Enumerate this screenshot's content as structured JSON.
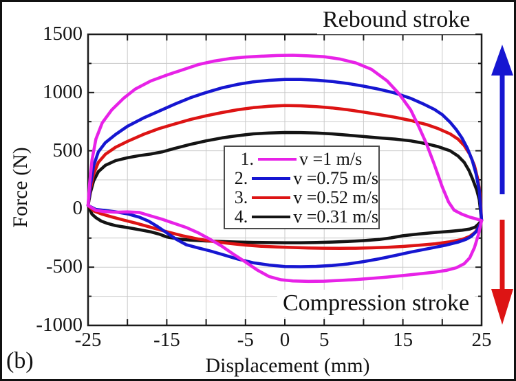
{
  "figure_label": "(b)",
  "annotations": {
    "rebound": "Rebound stroke",
    "compression": "Compression stroke"
  },
  "axis_titles": {
    "x": "Displacement (mm)",
    "y": "Force (N)"
  },
  "legend": {
    "items": [
      {
        "num": "1.",
        "label": "v =1 m/s",
        "color": "#e722e7"
      },
      {
        "num": "2.",
        "label": "v =0.75 m/s",
        "color": "#1616d1"
      },
      {
        "num": "3.",
        "label": "v =0.52 m/s",
        "color": "#dd1414"
      },
      {
        "num": "4.",
        "label": "v =0.31 m/s",
        "color": "#141414"
      }
    ]
  },
  "arrows": {
    "up_color": "#1616d1",
    "down_color": "#dd1414"
  },
  "colors": {
    "frame": "#1a1a1a",
    "grid": "#cacaca",
    "tick": "#1a1a1a"
  },
  "chart_data": {
    "type": "line",
    "title": "",
    "xlabel": "Displacement (mm)",
    "ylabel": "Force (N)",
    "xlim": [
      -25,
      25
    ],
    "ylim": [
      -1000,
      1500
    ],
    "grid": {
      "on": true,
      "x_step_mm": 5,
      "y_step_N": 250
    },
    "legend_position": "center",
    "x_tick_labels": [
      {
        "value": -25,
        "label": "-25"
      },
      {
        "value": -15,
        "label": "-15"
      },
      {
        "value": -5,
        "label": "-5"
      },
      {
        "value": 0,
        "label": "0"
      },
      {
        "value": 5,
        "label": "5"
      },
      {
        "value": 15,
        "label": "15"
      },
      {
        "value": 25,
        "label": "25"
      }
    ],
    "y_tick_labels": [
      {
        "value": 1500,
        "label": "1500"
      },
      {
        "value": 1000,
        "label": "1000"
      },
      {
        "value": 500,
        "label": "500"
      },
      {
        "value": 0,
        "label": "0"
      },
      {
        "value": -500,
        "label": "-500"
      },
      {
        "value": -1000,
        "label": "-1000"
      }
    ],
    "series": [
      {
        "name": "v =0.31 m/s",
        "color": "#141414",
        "loop": [
          [
            -25,
            30
          ],
          [
            -24.7,
            140
          ],
          [
            -24.3,
            240
          ],
          [
            -23.7,
            320
          ],
          [
            -22.8,
            375
          ],
          [
            -21.5,
            415
          ],
          [
            -20,
            440
          ],
          [
            -18.5,
            458
          ],
          [
            -17,
            472
          ],
          [
            -15.5,
            492
          ],
          [
            -14,
            520
          ],
          [
            -12,
            555
          ],
          [
            -10,
            585
          ],
          [
            -8,
            610
          ],
          [
            -6,
            630
          ],
          [
            -4,
            645
          ],
          [
            -2,
            653
          ],
          [
            0,
            657
          ],
          [
            2,
            656
          ],
          [
            4,
            652
          ],
          [
            6,
            645
          ],
          [
            8,
            634
          ],
          [
            10,
            622
          ],
          [
            12,
            610
          ],
          [
            14,
            600
          ],
          [
            16,
            585
          ],
          [
            18,
            560
          ],
          [
            19.5,
            535
          ],
          [
            21,
            500
          ],
          [
            22,
            455
          ],
          [
            22.8,
            400
          ],
          [
            23.4,
            330
          ],
          [
            23.9,
            250
          ],
          [
            24.4,
            160
          ],
          [
            24.7,
            80
          ],
          [
            25,
            -100
          ],
          [
            24.6,
            -130
          ],
          [
            24.2,
            -155
          ],
          [
            23.5,
            -172
          ],
          [
            22.5,
            -183
          ],
          [
            21,
            -192
          ],
          [
            19,
            -203
          ],
          [
            17,
            -215
          ],
          [
            15,
            -230
          ],
          [
            13.5,
            -248
          ],
          [
            12,
            -262
          ],
          [
            10,
            -272
          ],
          [
            8,
            -279
          ],
          [
            6,
            -284
          ],
          [
            4,
            -288
          ],
          [
            2,
            -290
          ],
          [
            0,
            -290
          ],
          [
            -2,
            -289
          ],
          [
            -4,
            -287
          ],
          [
            -6,
            -284
          ],
          [
            -8,
            -280
          ],
          [
            -10,
            -275
          ],
          [
            -12,
            -267
          ],
          [
            -13.5,
            -258
          ],
          [
            -15,
            -240
          ],
          [
            -16,
            -215
          ],
          [
            -17,
            -197
          ],
          [
            -18.5,
            -178
          ],
          [
            -20,
            -160
          ],
          [
            -21.5,
            -143
          ],
          [
            -22.5,
            -125
          ],
          [
            -23.3,
            -105
          ],
          [
            -24,
            -75
          ],
          [
            -24.5,
            -45
          ]
        ]
      },
      {
        "name": "v =0.52 m/s",
        "color": "#dd1414",
        "loop": [
          [
            -25,
            30
          ],
          [
            -24.7,
            170
          ],
          [
            -24.3,
            300
          ],
          [
            -23.7,
            400
          ],
          [
            -22.8,
            470
          ],
          [
            -21.5,
            530
          ],
          [
            -20,
            580
          ],
          [
            -18,
            640
          ],
          [
            -16,
            690
          ],
          [
            -14,
            730
          ],
          [
            -12,
            768
          ],
          [
            -10,
            800
          ],
          [
            -8,
            828
          ],
          [
            -6,
            852
          ],
          [
            -4,
            870
          ],
          [
            -2,
            882
          ],
          [
            0,
            888
          ],
          [
            2,
            886
          ],
          [
            4,
            880
          ],
          [
            6,
            868
          ],
          [
            8,
            852
          ],
          [
            10,
            832
          ],
          [
            12,
            810
          ],
          [
            14,
            788
          ],
          [
            16,
            760
          ],
          [
            18,
            725
          ],
          [
            19.5,
            690
          ],
          [
            21,
            645
          ],
          [
            22,
            600
          ],
          [
            22.8,
            545
          ],
          [
            23.5,
            470
          ],
          [
            24.1,
            370
          ],
          [
            24.5,
            260
          ],
          [
            24.8,
            130
          ],
          [
            25,
            -100
          ],
          [
            24.6,
            -160
          ],
          [
            24.2,
            -200
          ],
          [
            23.5,
            -235
          ],
          [
            22.5,
            -262
          ],
          [
            21,
            -282
          ],
          [
            19,
            -300
          ],
          [
            17,
            -312
          ],
          [
            15,
            -322
          ],
          [
            13,
            -329
          ],
          [
            11,
            -334
          ],
          [
            9,
            -337
          ],
          [
            7,
            -338
          ],
          [
            5,
            -337
          ],
          [
            3,
            -335
          ],
          [
            1,
            -331
          ],
          [
            -1,
            -326
          ],
          [
            -3,
            -320
          ],
          [
            -5,
            -310
          ],
          [
            -7,
            -296
          ],
          [
            -9,
            -280
          ],
          [
            -11,
            -258
          ],
          [
            -13,
            -230
          ],
          [
            -15,
            -196
          ],
          [
            -17,
            -158
          ],
          [
            -19,
            -120
          ],
          [
            -20.5,
            -95
          ],
          [
            -22,
            -68
          ],
          [
            -23.2,
            -45
          ],
          [
            -24.2,
            -20
          ]
        ]
      },
      {
        "name": "v =0.75 m/s",
        "color": "#1616d1",
        "loop": [
          [
            -25,
            30
          ],
          [
            -24.7,
            200
          ],
          [
            -24.3,
            370
          ],
          [
            -23.7,
            490
          ],
          [
            -22.8,
            570
          ],
          [
            -21.5,
            640
          ],
          [
            -20,
            710
          ],
          [
            -18,
            780
          ],
          [
            -16,
            840
          ],
          [
            -14,
            900
          ],
          [
            -12,
            955
          ],
          [
            -10,
            1000
          ],
          [
            -8,
            1040
          ],
          [
            -6,
            1070
          ],
          [
            -4,
            1092
          ],
          [
            -2,
            1105
          ],
          [
            0,
            1112
          ],
          [
            2,
            1112
          ],
          [
            4,
            1106
          ],
          [
            6,
            1095
          ],
          [
            8,
            1078
          ],
          [
            10,
            1055
          ],
          [
            12,
            1028
          ],
          [
            14,
            995
          ],
          [
            16,
            950
          ],
          [
            17.5,
            905
          ],
          [
            19,
            855
          ],
          [
            20,
            810
          ],
          [
            21,
            745
          ],
          [
            21.8,
            680
          ],
          [
            22.5,
            610
          ],
          [
            23.2,
            520
          ],
          [
            23.8,
            420
          ],
          [
            24.3,
            300
          ],
          [
            24.7,
            160
          ],
          [
            25,
            -100
          ],
          [
            24.7,
            -150
          ],
          [
            24.3,
            -195
          ],
          [
            23.7,
            -235
          ],
          [
            23,
            -262
          ],
          [
            22,
            -285
          ],
          [
            20.5,
            -310
          ],
          [
            19,
            -330
          ],
          [
            17.5,
            -350
          ],
          [
            16,
            -370
          ],
          [
            14,
            -400
          ],
          [
            12,
            -428
          ],
          [
            10,
            -452
          ],
          [
            8,
            -472
          ],
          [
            6,
            -486
          ],
          [
            4,
            -493
          ],
          [
            2,
            -496
          ],
          [
            0,
            -494
          ],
          [
            -2,
            -482
          ],
          [
            -4,
            -462
          ],
          [
            -6,
            -430
          ],
          [
            -8,
            -390
          ],
          [
            -9.5,
            -360
          ],
          [
            -11,
            -335
          ],
          [
            -12.5,
            -308
          ],
          [
            -13.8,
            -260
          ],
          [
            -15,
            -205
          ],
          [
            -16.2,
            -150
          ],
          [
            -17.3,
            -105
          ],
          [
            -18.5,
            -70
          ],
          [
            -20,
            -42
          ],
          [
            -21.5,
            -25
          ],
          [
            -23,
            -12
          ],
          [
            -24,
            -4
          ]
        ]
      },
      {
        "name": "v =1 m/s",
        "color": "#e722e7",
        "loop": [
          [
            -25,
            30
          ],
          [
            -24.8,
            220
          ],
          [
            -24.5,
            420
          ],
          [
            -24,
            600
          ],
          [
            -23.2,
            740
          ],
          [
            -22,
            850
          ],
          [
            -20.5,
            950
          ],
          [
            -19,
            1030
          ],
          [
            -17,
            1100
          ],
          [
            -15,
            1150
          ],
          [
            -13,
            1195
          ],
          [
            -11,
            1240
          ],
          [
            -9,
            1270
          ],
          [
            -7,
            1292
          ],
          [
            -5,
            1305
          ],
          [
            -3,
            1312
          ],
          [
            -1,
            1318
          ],
          [
            1,
            1320
          ],
          [
            3,
            1315
          ],
          [
            5,
            1308
          ],
          [
            7,
            1288
          ],
          [
            9,
            1255
          ],
          [
            11,
            1200
          ],
          [
            13,
            1100
          ],
          [
            14.5,
            990
          ],
          [
            16,
            850
          ],
          [
            17,
            710
          ],
          [
            18,
            560
          ],
          [
            19,
            380
          ],
          [
            20,
            190
          ],
          [
            20.8,
            60
          ],
          [
            21.5,
            -10
          ],
          [
            22.5,
            -45
          ],
          [
            23.5,
            -70
          ],
          [
            24.3,
            -85
          ],
          [
            25,
            -100
          ],
          [
            24.6,
            -220
          ],
          [
            24.1,
            -330
          ],
          [
            23.5,
            -420
          ],
          [
            22.8,
            -470
          ],
          [
            21.8,
            -505
          ],
          [
            20.5,
            -528
          ],
          [
            19,
            -543
          ],
          [
            17,
            -558
          ],
          [
            15,
            -572
          ],
          [
            13,
            -585
          ],
          [
            11,
            -596
          ],
          [
            9,
            -606
          ],
          [
            7,
            -614
          ],
          [
            5,
            -620
          ],
          [
            3,
            -622
          ],
          [
            1,
            -618
          ],
          [
            -0.5,
            -608
          ],
          [
            -2,
            -580
          ],
          [
            -3.5,
            -525
          ],
          [
            -5,
            -455
          ],
          [
            -6.5,
            -390
          ],
          [
            -8,
            -320
          ],
          [
            -9.5,
            -260
          ],
          [
            -11,
            -205
          ],
          [
            -12.5,
            -160
          ],
          [
            -14,
            -125
          ],
          [
            -15.5,
            -90
          ],
          [
            -17,
            -60
          ],
          [
            -18.5,
            -30
          ],
          [
            -20,
            -25
          ],
          [
            -21.5,
            -28
          ],
          [
            -23,
            -22
          ],
          [
            -24,
            -12
          ]
        ]
      }
    ]
  }
}
